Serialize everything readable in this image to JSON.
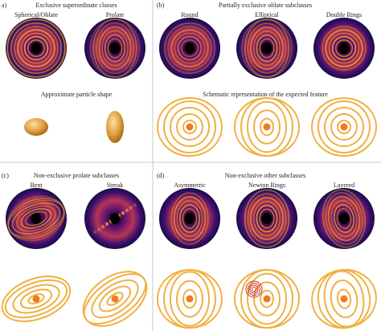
{
  "panels": [
    {
      "label": "a)",
      "title": "Exclusive superordinate classes",
      "items": [
        {
          "name": "Spherical/Oblate"
        },
        {
          "name": "Prolate"
        }
      ],
      "caption": "Approximate particle shape"
    },
    {
      "label": "(b)",
      "title": "Partially exclusive oblate subclasses",
      "items": [
        {
          "name": "Round"
        },
        {
          "name": "Elliptical"
        },
        {
          "name": "Double Rings"
        }
      ],
      "caption": "Schematic representation of the expected feature"
    },
    {
      "label": "(c)",
      "title": "Non-exclusive prolate subclasses",
      "items": [
        {
          "name": "Bent"
        },
        {
          "name": "Streak"
        }
      ]
    },
    {
      "label": "(d)",
      "title": "Non-exclusive other subclasses",
      "items": [
        {
          "name": "Asymmetric"
        },
        {
          "name": "Newton Rings"
        },
        {
          "name": "Layered"
        }
      ]
    }
  ]
}
